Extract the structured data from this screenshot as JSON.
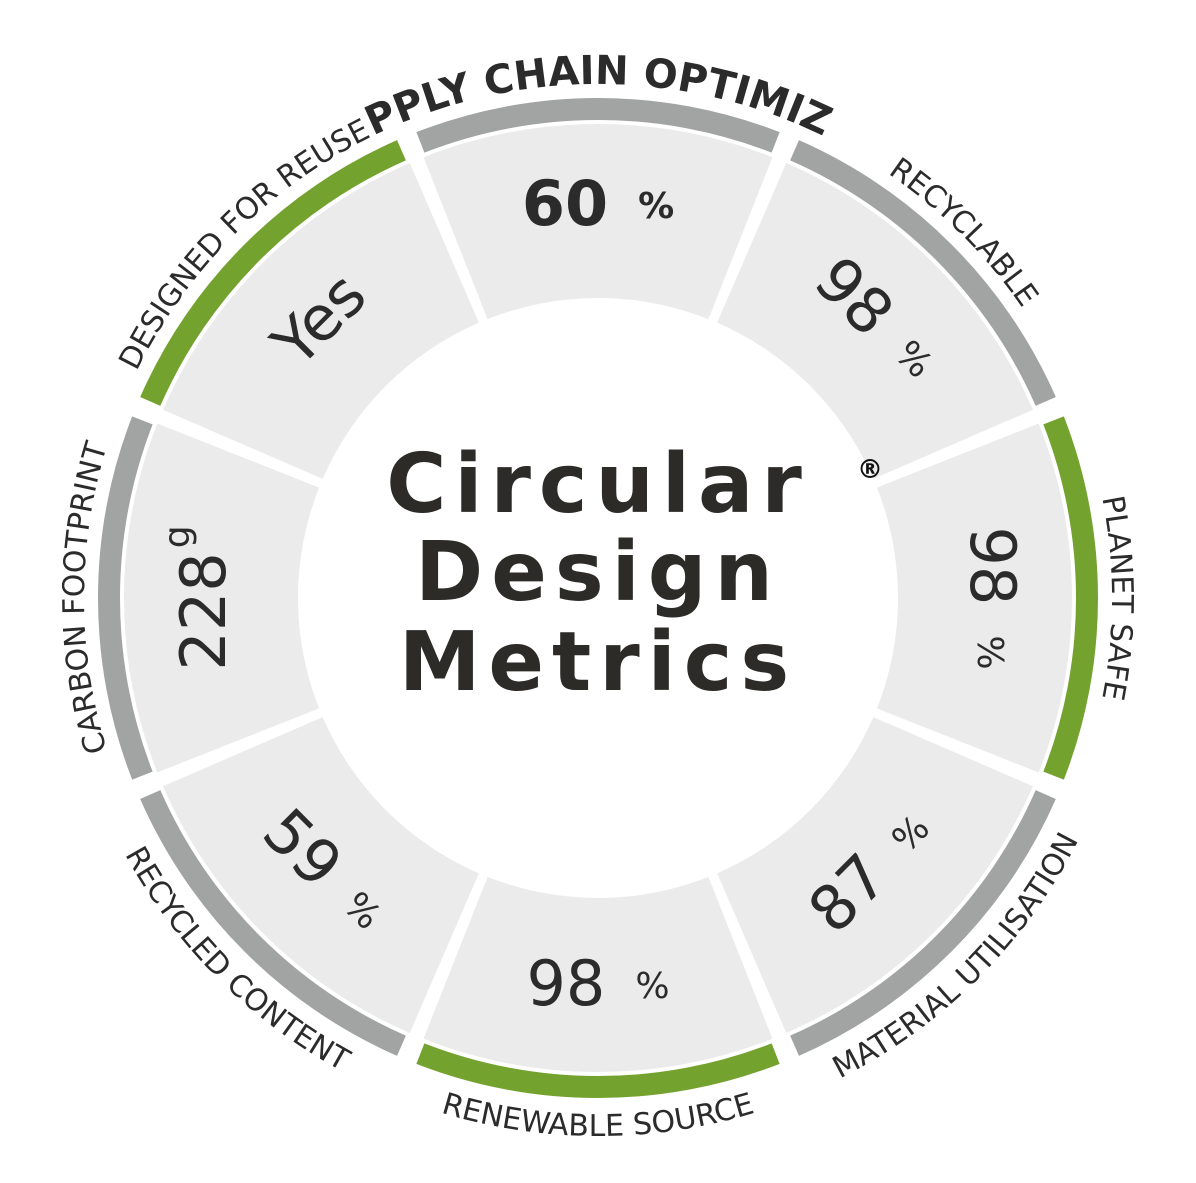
{
  "title": {
    "lines": [
      "Circular",
      "Design",
      "Metrics"
    ],
    "mark": "®"
  },
  "segments": [
    {
      "label": "SUPPLY CHAIN OPTIMIZED",
      "value": "60",
      "unit": "%",
      "color": "#a2a4a3"
    },
    {
      "label": "RECYCLABLE",
      "value": "98",
      "unit": "%",
      "color": "#a2a4a3"
    },
    {
      "label": "PLANET SAFE",
      "value": "98",
      "unit": "%",
      "color": "#74a22e"
    },
    {
      "label": "MATERIAL UTILISATION",
      "value": "87",
      "unit": "%",
      "color": "#a2a4a3"
    },
    {
      "label": "RENEWABLE SOURCE",
      "value": "98",
      "unit": "%",
      "color": "#74a22e"
    },
    {
      "label": "RECYCLED CONTENT",
      "value": "59",
      "unit": "%",
      "color": "#a2a4a3"
    },
    {
      "label": "CARBON FOOTPRINT",
      "value": "228",
      "unit": "g",
      "color": "#a2a4a3"
    },
    {
      "label": "DESIGNED FOR REUSE",
      "value": "Yes",
      "color": "#74a22e"
    }
  ]
}
